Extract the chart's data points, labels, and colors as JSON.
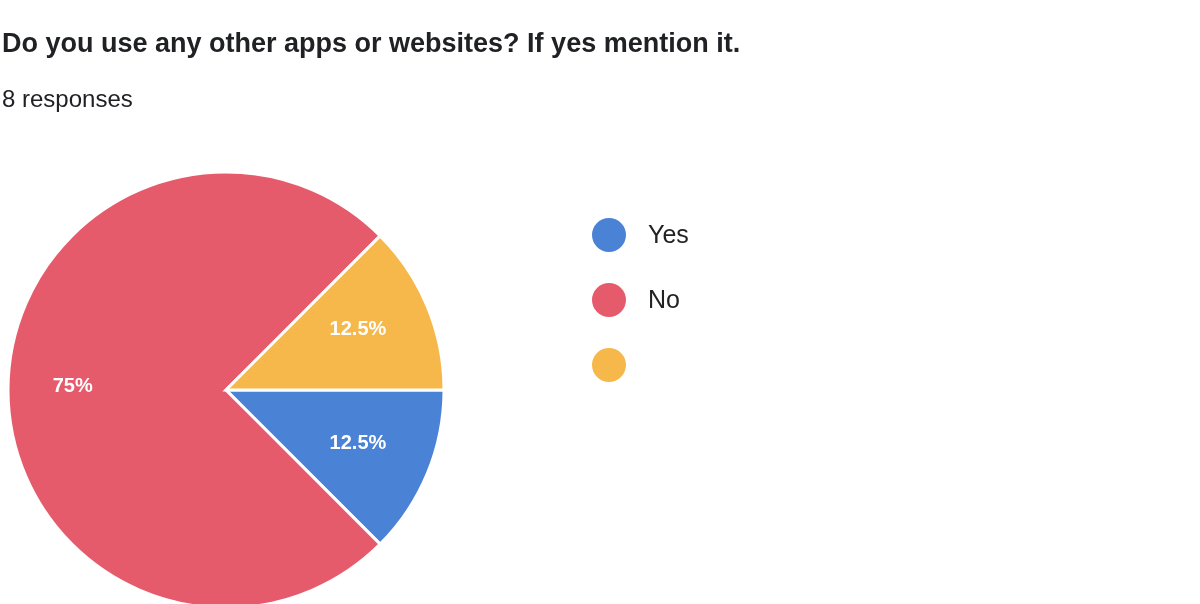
{
  "chart_data": {
    "type": "pie",
    "title": "Do you use any other apps or websites? If yes mention it.",
    "subtitle": "8 responses",
    "categories": [
      "Yes",
      "No",
      null
    ],
    "values": [
      12.5,
      75,
      12.5
    ],
    "colors": [
      "#4a82d6",
      "#e65b6b",
      "#f6b84a"
    ],
    "value_labels": [
      "12.5%",
      "75%",
      "12.5%"
    ],
    "legend": "right"
  }
}
